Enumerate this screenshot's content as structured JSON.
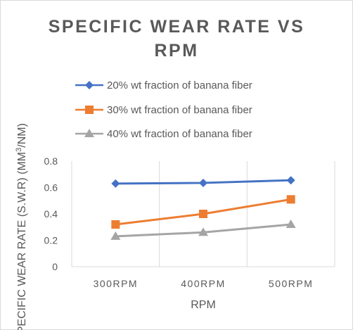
{
  "chart_data": {
    "type": "line",
    "title_lines": [
      "SPECIFIC  WEAR RATE VS",
      "RPM"
    ],
    "xlabel": "RPM",
    "ylabel_main": "SPECIFIC WEAR RATE (S.W.R) (MM",
    "ylabel_sup": "3",
    "ylabel_tail": "/NM)",
    "categories": [
      "300RPM",
      "400RPM",
      "500RPM"
    ],
    "ylim": [
      0,
      0.8
    ],
    "y_ticks": [
      "0",
      "0.2",
      "0.4",
      "0.6",
      "0.8"
    ],
    "y_tick_values": [
      0,
      0.2,
      0.4,
      0.6,
      0.8
    ],
    "grid": "vertical",
    "legend_position": "top",
    "series": [
      {
        "name": "20% wt fraction of  banana fiber",
        "values": [
          0.63,
          0.635,
          0.655
        ],
        "color": "#4472c4",
        "marker": "diamond"
      },
      {
        "name": "30% wt fraction of  banana fiber",
        "values": [
          0.32,
          0.4,
          0.51
        ],
        "color": "#ed7d31",
        "marker": "square"
      },
      {
        "name": "40% wt fraction of  banana fiber",
        "values": [
          0.23,
          0.26,
          0.32
        ],
        "color": "#a5a5a5",
        "marker": "triangle"
      }
    ]
  }
}
